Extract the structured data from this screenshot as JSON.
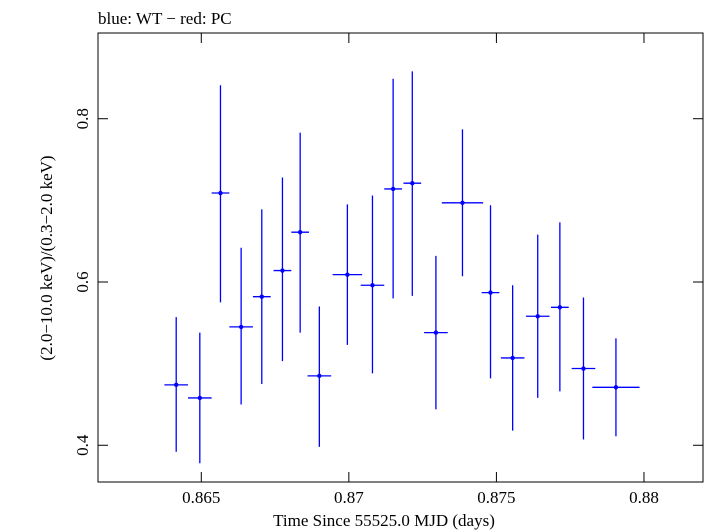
{
  "chart_data": {
    "type": "scatter",
    "title": "blue: WT − red: PC",
    "xlabel": "Time Since 55525.0 MJD (days)",
    "ylabel": "(2.0−10.0 keV)/(0.3−2.0 keV)",
    "xlim": [
      0.8615,
      0.882
    ],
    "ylim": [
      0.355,
      0.905
    ],
    "x_ticks": [
      0.865,
      0.87,
      0.875,
      0.88
    ],
    "x_tick_labels": [
      "0.865",
      "0.87",
      "0.875",
      "0.88"
    ],
    "y_ticks": [
      0.4,
      0.6,
      0.8
    ],
    "y_tick_labels": [
      "0.4",
      "0.6",
      "0.8"
    ],
    "grid": false,
    "series": [
      {
        "color": "#0000ff",
        "points": [
          {
            "x": 0.86415,
            "xerr": 0.0004,
            "y": 0.474,
            "yerr_lo": 0.082,
            "yerr_hi": 0.083
          },
          {
            "x": 0.86495,
            "xerr": 0.0004,
            "y": 0.458,
            "yerr_lo": 0.08,
            "yerr_hi": 0.08
          },
          {
            "x": 0.86565,
            "xerr": 0.0003,
            "y": 0.709,
            "yerr_lo": 0.134,
            "yerr_hi": 0.132
          },
          {
            "x": 0.86635,
            "xerr": 0.0004,
            "y": 0.545,
            "yerr_lo": 0.095,
            "yerr_hi": 0.097
          },
          {
            "x": 0.86705,
            "xerr": 0.0003,
            "y": 0.582,
            "yerr_lo": 0.107,
            "yerr_hi": 0.107
          },
          {
            "x": 0.86775,
            "xerr": 0.0003,
            "y": 0.614,
            "yerr_lo": 0.111,
            "yerr_hi": 0.114
          },
          {
            "x": 0.86835,
            "xerr": 0.0003,
            "y": 0.661,
            "yerr_lo": 0.123,
            "yerr_hi": 0.122
          },
          {
            "x": 0.869,
            "xerr": 0.0004,
            "y": 0.485,
            "yerr_lo": 0.087,
            "yerr_hi": 0.085
          },
          {
            "x": 0.86995,
            "xerr": 0.0005,
            "y": 0.609,
            "yerr_lo": 0.086,
            "yerr_hi": 0.086
          },
          {
            "x": 0.8708,
            "xerr": 0.0004,
            "y": 0.596,
            "yerr_lo": 0.108,
            "yerr_hi": 0.11
          },
          {
            "x": 0.8715,
            "xerr": 0.0003,
            "y": 0.714,
            "yerr_lo": 0.134,
            "yerr_hi": 0.135
          },
          {
            "x": 0.87215,
            "xerr": 0.0003,
            "y": 0.721,
            "yerr_lo": 0.138,
            "yerr_hi": 0.137
          },
          {
            "x": 0.87295,
            "xerr": 0.0004,
            "y": 0.538,
            "yerr_lo": 0.094,
            "yerr_hi": 0.094
          },
          {
            "x": 0.87385,
            "xerr": 0.0007,
            "y": 0.697,
            "yerr_lo": 0.09,
            "yerr_hi": 0.09
          },
          {
            "x": 0.8748,
            "xerr": 0.0003,
            "y": 0.587,
            "yerr_lo": 0.105,
            "yerr_hi": 0.107
          },
          {
            "x": 0.87555,
            "xerr": 0.0004,
            "y": 0.507,
            "yerr_lo": 0.089,
            "yerr_hi": 0.089
          },
          {
            "x": 0.8764,
            "xerr": 0.0004,
            "y": 0.558,
            "yerr_lo": 0.1,
            "yerr_hi": 0.1
          },
          {
            "x": 0.87715,
            "xerr": 0.0003,
            "y": 0.569,
            "yerr_lo": 0.103,
            "yerr_hi": 0.104
          },
          {
            "x": 0.87795,
            "xerr": 0.0004,
            "y": 0.494,
            "yerr_lo": 0.087,
            "yerr_hi": 0.087
          },
          {
            "x": 0.87905,
            "xerr": 0.0008,
            "y": 0.471,
            "yerr_lo": 0.06,
            "yerr_hi": 0.06
          }
        ]
      }
    ]
  }
}
